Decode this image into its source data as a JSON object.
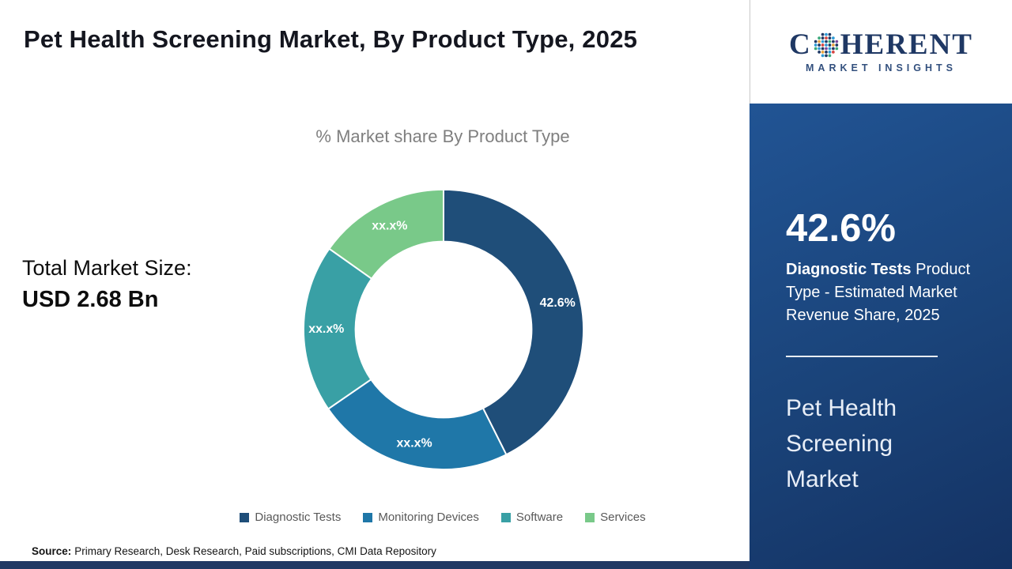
{
  "header": {
    "title": "Pet Health Screening Market, By Product Type, 2025"
  },
  "logo": {
    "first_letter": "C",
    "rest": "HERENT",
    "tagline": "MARKET INSIGHTS"
  },
  "left": {
    "total_label": "Total Market Size:",
    "total_value": "USD 2.68 Bn"
  },
  "chart_data": {
    "type": "pie",
    "donut": true,
    "title": "% Market share By Product Type",
    "categories": [
      "Diagnostic Tests",
      "Monitoring Devices",
      "Software",
      "Services"
    ],
    "values": [
      42.6,
      22.8,
      19.4,
      15.2
    ],
    "labels": [
      "42.6%",
      "xx.x%",
      "xx.x%",
      "xx.x%"
    ],
    "colors": [
      "#1f4e79",
      "#1f77a8",
      "#39a0a5",
      "#79c989"
    ],
    "legend_position": "bottom",
    "start_angle_deg": 0,
    "direction": "clockwise"
  },
  "sidebar": {
    "stat_value": "42.6%",
    "stat_bold": "Diagnostic Tests",
    "stat_rest": " Product Type - Estimated Market Revenue Share, 2025",
    "market_name": "Pet Health Screening Market",
    "panel_color": "#1a4379"
  },
  "footer": {
    "source_label": "Source:",
    "source_text": "Primary Research, Desk Research, Paid subscriptions, CMI Data Repository",
    "accent_color": "#1f3864"
  }
}
